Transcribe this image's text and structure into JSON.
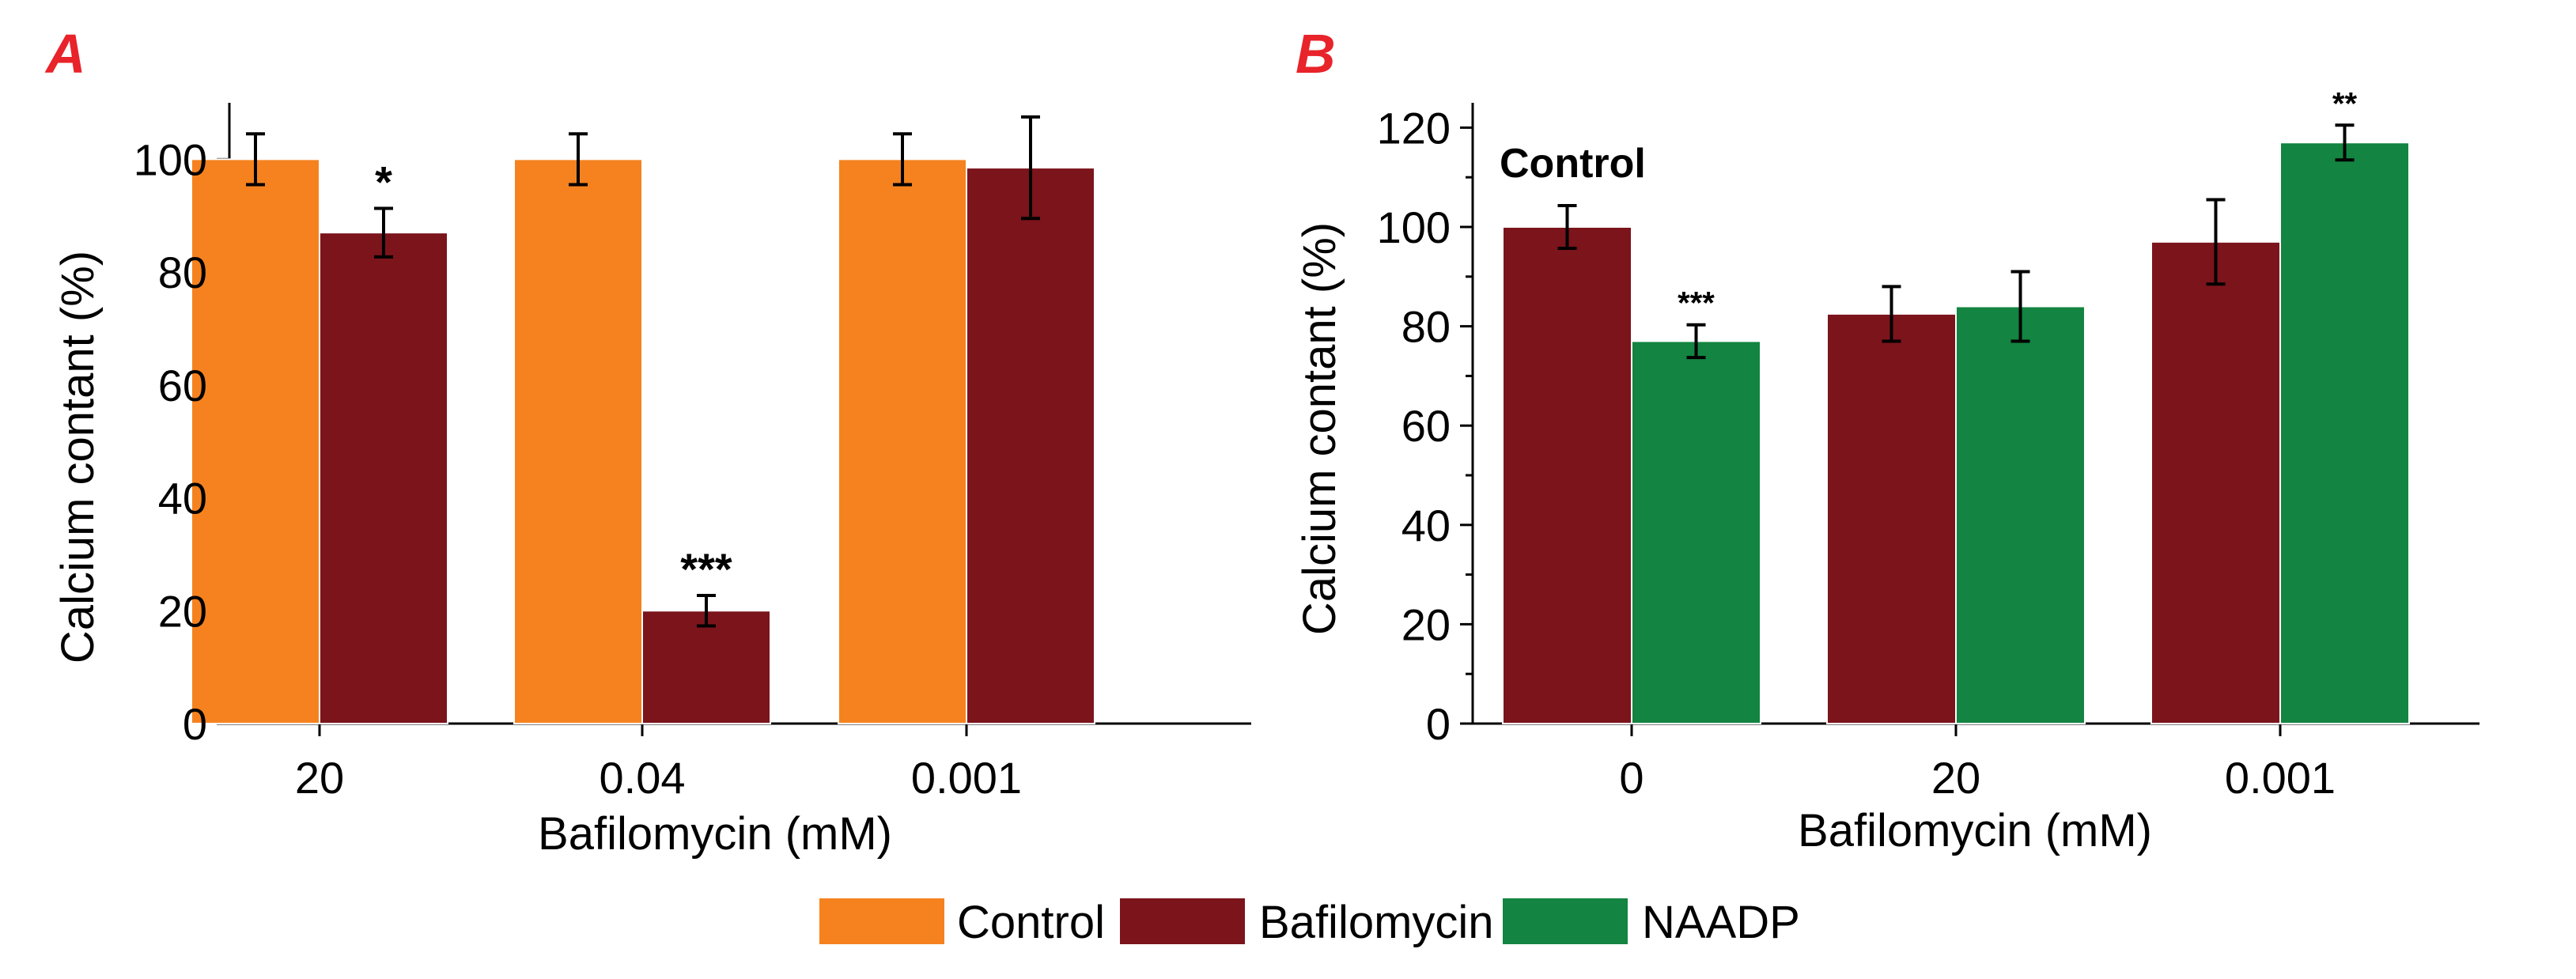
{
  "colors": {
    "control": "#f5821f",
    "bafilomycin": "#7b141b",
    "naadp": "#138441",
    "panel_label": "#e8232a",
    "axis": "#000000"
  },
  "legend": [
    {
      "key": "control",
      "label": "Control"
    },
    {
      "key": "bafilomycin",
      "label": "Bafilomycin"
    },
    {
      "key": "naadp",
      "label": "NAADP"
    }
  ],
  "chart_data": [
    {
      "panel": "A",
      "type": "bar",
      "title": "",
      "xlabel": "Bafilomycin (mM)",
      "ylabel": "Calcium contant (%)",
      "ylim": [
        0,
        110
      ],
      "yticks": [
        0,
        20,
        40,
        60,
        80,
        100
      ],
      "categories": [
        "20",
        "0.04",
        "0.001"
      ],
      "series": [
        {
          "name": "Control",
          "key": "control",
          "values": [
            100,
            100,
            100
          ],
          "errors": [
            4.5,
            4.5,
            4.5
          ],
          "sig": [
            "",
            "",
            ""
          ]
        },
        {
          "name": "Bafilomycin",
          "key": "bafilomycin",
          "values": [
            87,
            20,
            98.5
          ],
          "errors": [
            4.3,
            2.7,
            9
          ],
          "sig": [
            "*",
            "***",
            ""
          ]
        }
      ]
    },
    {
      "panel": "B",
      "type": "bar",
      "title": "",
      "xlabel": "Bafilomycin (mM)",
      "ylabel": "Calcium contant (%)",
      "ylim": [
        0,
        125
      ],
      "yticks": [
        0,
        20,
        40,
        60,
        80,
        100,
        120
      ],
      "inset_label": "Control",
      "categories": [
        "0",
        "20",
        "0.001"
      ],
      "series": [
        {
          "name": "Bafilomycin",
          "key": "bafilomycin",
          "values": [
            100,
            82.5,
            97
          ],
          "errors": [
            4.3,
            5.5,
            8.5
          ],
          "sig": [
            "",
            "",
            ""
          ]
        },
        {
          "name": "NAADP",
          "key": "naadp",
          "values": [
            77,
            84,
            117
          ],
          "errors": [
            3.3,
            7,
            3.5
          ],
          "sig": [
            "***",
            "",
            "**"
          ]
        }
      ]
    }
  ]
}
